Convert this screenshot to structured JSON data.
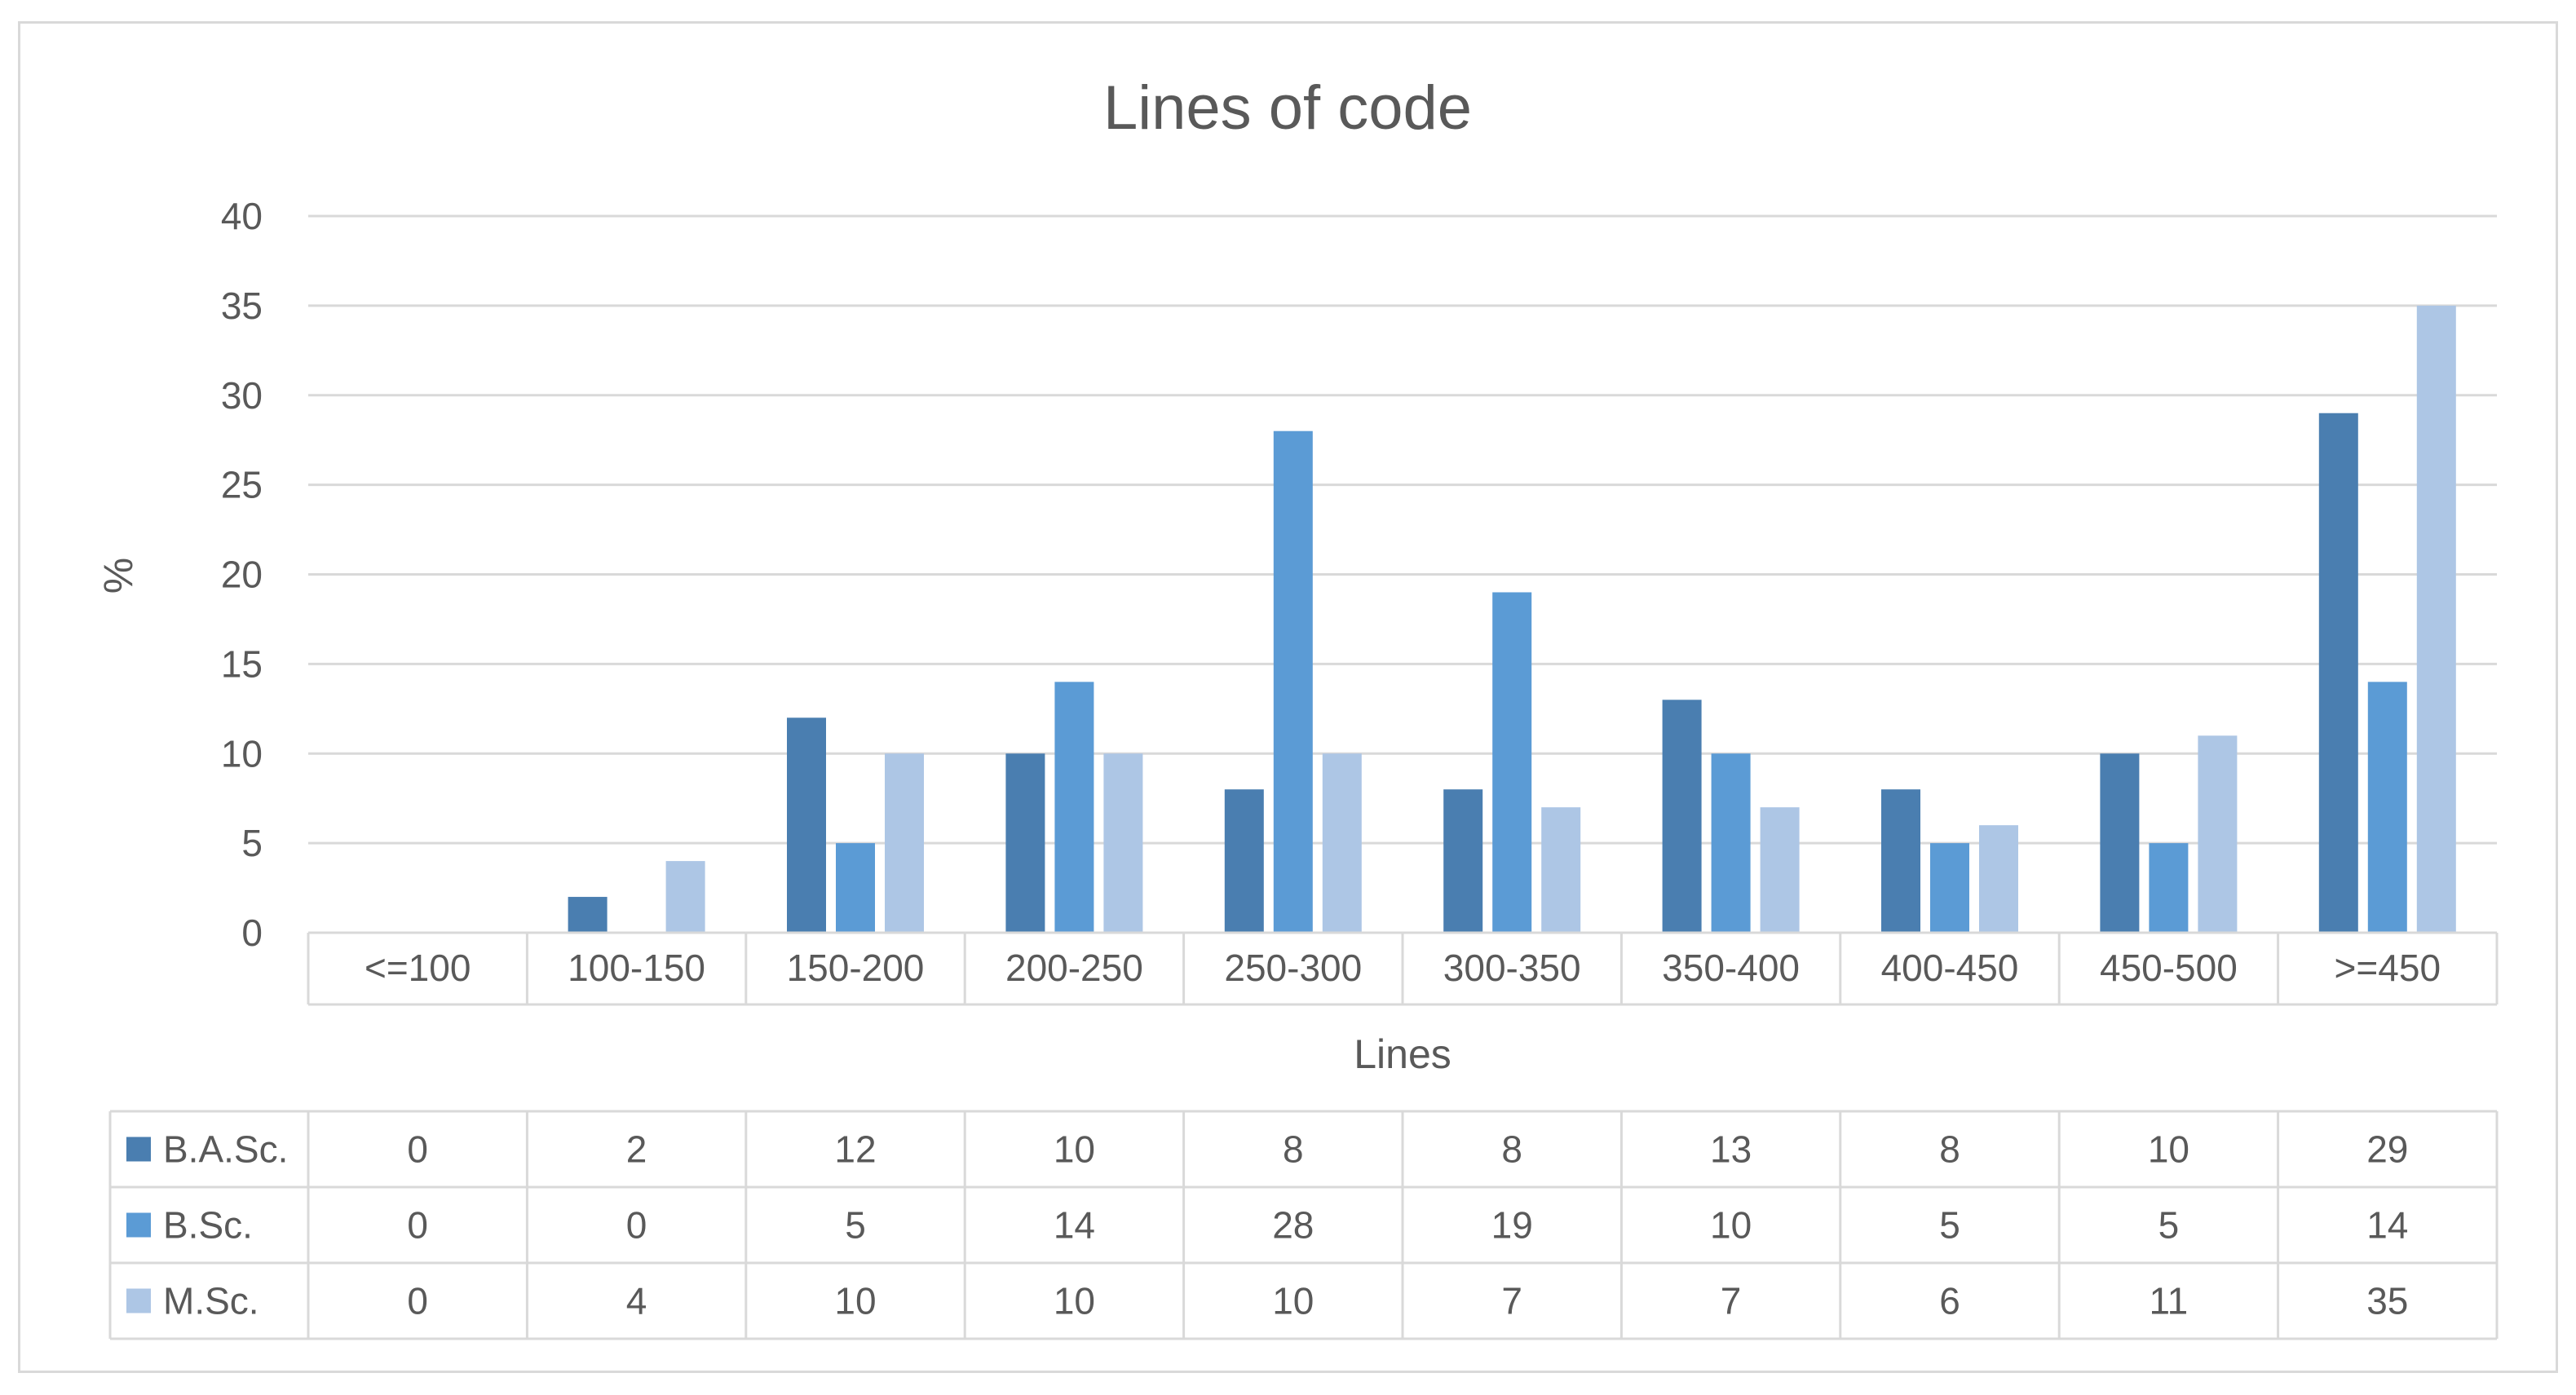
{
  "chart_data": {
    "type": "bar",
    "title": "Lines of code",
    "xlabel": "Lines",
    "ylabel": "%",
    "ylim": [
      0,
      40
    ],
    "yticks": [
      0,
      5,
      10,
      15,
      20,
      25,
      30,
      35,
      40
    ],
    "grid": true,
    "legend": "data-table",
    "categories": [
      "<=100",
      "100-150",
      "150-200",
      "200-250",
      "250-300",
      "300-350",
      "350-400",
      "400-450",
      "450-500",
      ">=450"
    ],
    "series": [
      {
        "name": "B.A.Sc.",
        "color": "#4a7eb0",
        "values": [
          0,
          2,
          12,
          10,
          8,
          8,
          13,
          8,
          10,
          29
        ]
      },
      {
        "name": "B.Sc.",
        "color": "#5b9bd5",
        "values": [
          0,
          0,
          5,
          14,
          28,
          19,
          10,
          5,
          5,
          14
        ]
      },
      {
        "name": "M.Sc.",
        "color": "#adc6e5",
        "values": [
          0,
          4,
          10,
          10,
          10,
          7,
          7,
          6,
          11,
          35
        ]
      }
    ]
  }
}
